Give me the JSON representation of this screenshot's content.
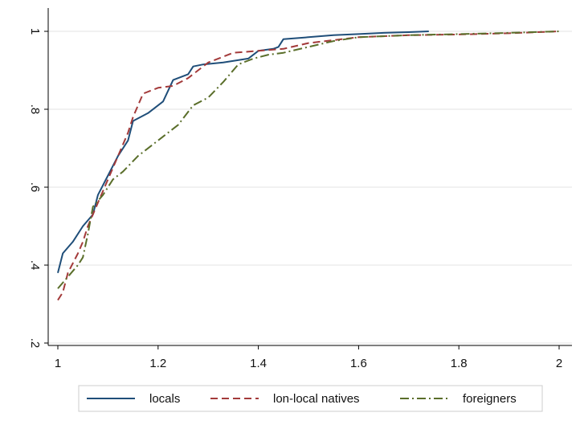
{
  "chart_data": {
    "type": "line",
    "title": "",
    "xlabel": "",
    "ylabel": "",
    "xlim": [
      1,
      2
    ],
    "ylim": [
      0.2,
      1
    ],
    "xticks": [
      1,
      1.2,
      1.4,
      1.6,
      1.8,
      2
    ],
    "xtick_labels": [
      "1",
      "1.2",
      "1.4",
      "1.6",
      "1.8",
      "2"
    ],
    "yticks": [
      0.2,
      0.4,
      0.6,
      0.8,
      1
    ],
    "ytick_labels": [
      ".2",
      ".4",
      ".6",
      ".8",
      "1"
    ],
    "grid": true,
    "legend_position": "bottom",
    "series": [
      {
        "name": "locals",
        "color": "#1f4e79",
        "dash": "solid",
        "x": [
          1.0,
          1.01,
          1.03,
          1.05,
          1.07,
          1.08,
          1.1,
          1.12,
          1.14,
          1.15,
          1.18,
          1.21,
          1.23,
          1.26,
          1.27,
          1.29,
          1.33,
          1.38,
          1.4,
          1.43,
          1.44,
          1.45,
          1.5,
          1.55,
          1.6,
          1.65,
          1.7,
          1.74
        ],
        "y": [
          0.38,
          0.43,
          0.46,
          0.5,
          0.53,
          0.58,
          0.63,
          0.68,
          0.72,
          0.77,
          0.79,
          0.82,
          0.875,
          0.89,
          0.91,
          0.915,
          0.92,
          0.93,
          0.95,
          0.955,
          0.96,
          0.98,
          0.985,
          0.99,
          0.993,
          0.996,
          0.998,
          1.0
        ]
      },
      {
        "name": "lon-local natives",
        "color": "#a33a3a",
        "dash": "dash",
        "x": [
          1.0,
          1.01,
          1.02,
          1.04,
          1.05,
          1.06,
          1.08,
          1.1,
          1.12,
          1.14,
          1.15,
          1.17,
          1.2,
          1.23,
          1.26,
          1.3,
          1.35,
          1.4,
          1.45,
          1.5,
          1.6,
          1.7,
          1.8,
          1.9,
          2.0
        ],
        "y": [
          0.31,
          0.33,
          0.38,
          0.43,
          0.46,
          0.5,
          0.56,
          0.62,
          0.68,
          0.74,
          0.78,
          0.84,
          0.855,
          0.86,
          0.88,
          0.92,
          0.945,
          0.95,
          0.955,
          0.97,
          0.985,
          0.99,
          0.992,
          0.995,
          1.0
        ]
      },
      {
        "name": "foreigners",
        "color": "#5a6e2a",
        "dash": "dashdot",
        "x": [
          1.0,
          1.02,
          1.04,
          1.05,
          1.06,
          1.07,
          1.09,
          1.11,
          1.13,
          1.16,
          1.2,
          1.24,
          1.27,
          1.3,
          1.33,
          1.36,
          1.39,
          1.42,
          1.45,
          1.5,
          1.55,
          1.6,
          1.7,
          1.8,
          1.9,
          2.0
        ],
        "y": [
          0.34,
          0.37,
          0.4,
          0.42,
          0.48,
          0.55,
          0.58,
          0.62,
          0.64,
          0.68,
          0.72,
          0.76,
          0.81,
          0.83,
          0.87,
          0.915,
          0.93,
          0.94,
          0.945,
          0.96,
          0.975,
          0.985,
          0.99,
          0.993,
          0.996,
          1.0
        ]
      }
    ]
  }
}
